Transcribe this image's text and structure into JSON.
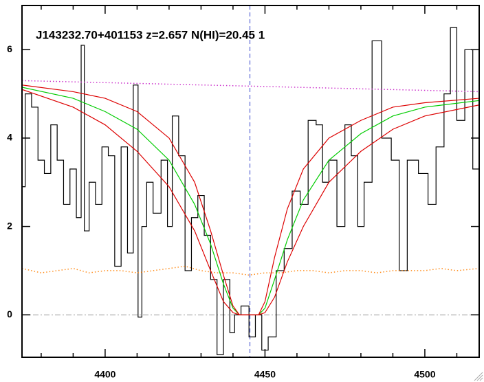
{
  "chart_data": {
    "type": "line",
    "title": "J143232.70+401153 z=2.657 N(HI)=20.45 1",
    "xlim": [
      4374,
      4517
    ],
    "ylim": [
      -0.96,
      7
    ],
    "xticks": [
      4400,
      4450,
      4500
    ],
    "yticks": [
      0,
      2,
      4,
      6
    ],
    "xminorticks": [
      4380,
      4390,
      4410,
      4420,
      4430,
      4440,
      4460,
      4470,
      4480,
      4490,
      4510
    ],
    "hlines": [
      0
    ],
    "vlines": [
      4445.3
    ],
    "series": [
      {
        "style": "steps",
        "color": "#000000",
        "x": [
          4374,
          4376,
          4378,
          4380,
          4382,
          4384,
          4386,
          4388,
          4390,
          4392,
          4393,
          4394,
          4396,
          4398,
          4400,
          4402,
          4404,
          4406,
          4408,
          4409.6,
          4411,
          4412,
          4414,
          4416,
          4419,
          4420,
          4422,
          4424,
          4426,
          4428,
          4430,
          4432,
          4434,
          4436,
          4438,
          4440,
          4441,
          4444,
          4446,
          4448,
          4450,
          4452,
          4455,
          4457,
          4460,
          4462,
          4465,
          4467,
          4469,
          4471,
          4474,
          4476,
          4478,
          4480,
          4482,
          4485,
          4488,
          4491,
          4493,
          4496,
          4500,
          4502,
          4505,
          4507,
          4509,
          4511,
          4514,
          4516
        ],
        "values": [
          2.9,
          5.0,
          4.7,
          3.5,
          3.2,
          4.3,
          3.5,
          2.5,
          3.3,
          2.2,
          6.1,
          1.9,
          3.0,
          2.5,
          3.8,
          3.6,
          1.1,
          3.8,
          1.4,
          5.2,
          -0.05,
          2.0,
          3.0,
          2.3,
          3.5,
          2.0,
          4.5,
          3.6,
          1.0,
          2.2,
          2.7,
          1.8,
          0.8,
          -0.9,
          0.8,
          -0.4,
          0.0,
          0.2,
          -0.5,
          0.0,
          -0.8,
          -0.5,
          1.0,
          1.5,
          2.8,
          2.5,
          4.4,
          4.3,
          3.0,
          3.5,
          2.0,
          4.3,
          3.6,
          2.0,
          3.0,
          6.2,
          4.0,
          3.5,
          1.0,
          3.5,
          3.2,
          2.5,
          3.8,
          5.0,
          6.5,
          4.4,
          6.0,
          3.3
        ]
      },
      {
        "style": "dotted",
        "color": "#cc33cc",
        "x": [
          4374,
          4517
        ],
        "values": [
          5.3,
          5.05
        ]
      },
      {
        "style": "dotted",
        "color": "#ff8c1a",
        "x": [
          4374,
          4380,
          4385,
          4390,
          4395,
          4400,
          4405,
          4410,
          4415,
          4420,
          4425,
          4430,
          4435,
          4440,
          4445,
          4450,
          4455,
          4460,
          4465,
          4470,
          4475,
          4480,
          4485,
          4490,
          4495,
          4500,
          4505,
          4510,
          4517
        ],
        "values": [
          1.05,
          0.95,
          1.0,
          1.05,
          0.95,
          1.0,
          1.0,
          0.95,
          1.0,
          1.05,
          1.1,
          1.0,
          0.95,
          0.95,
          0.9,
          0.95,
          0.95,
          1.0,
          1.0,
          0.95,
          1.0,
          1.0,
          0.95,
          1.0,
          1.0,
          1.0,
          1.05,
          1.0,
          1.05
        ]
      },
      {
        "style": "solid",
        "color": "#00cc00",
        "x": [
          4374,
          4390,
          4400,
          4410,
          4420,
          4428,
          4433,
          4437,
          4440,
          4442,
          4448,
          4450,
          4453,
          4457,
          4462,
          4470,
          4480,
          4490,
          4500,
          4517
        ],
        "values": [
          5.15,
          4.9,
          4.6,
          4.2,
          3.5,
          2.5,
          1.6,
          0.7,
          0.15,
          0,
          0,
          0.15,
          0.8,
          1.7,
          2.6,
          3.5,
          4.1,
          4.5,
          4.7,
          4.85
        ]
      },
      {
        "style": "solid",
        "color": "#dd0000",
        "x": [
          4374,
          4390,
          4400,
          4410,
          4420,
          4428,
          4433,
          4437,
          4440,
          4442,
          4448,
          4450,
          4453,
          4457,
          4462,
          4470,
          4480,
          4490,
          4500,
          4517
        ],
        "values": [
          5.2,
          5.05,
          4.9,
          4.6,
          4.0,
          3.0,
          1.9,
          0.9,
          0.2,
          0,
          0,
          0.3,
          1.3,
          2.4,
          3.3,
          4.0,
          4.4,
          4.7,
          4.8,
          4.9
        ]
      },
      {
        "style": "solid",
        "color": "#dd0000",
        "x": [
          4374,
          4390,
          4400,
          4410,
          4420,
          4428,
          4433,
          4437,
          4440,
          4442,
          4448,
          4450,
          4453,
          4457,
          4462,
          4470,
          4480,
          4490,
          4500,
          4517
        ],
        "values": [
          5.1,
          4.7,
          4.3,
          3.7,
          2.9,
          1.9,
          1.0,
          0.3,
          0.05,
          0,
          0,
          0.05,
          0.4,
          1.2,
          2.0,
          3.0,
          3.7,
          4.2,
          4.5,
          4.75
        ]
      }
    ]
  }
}
